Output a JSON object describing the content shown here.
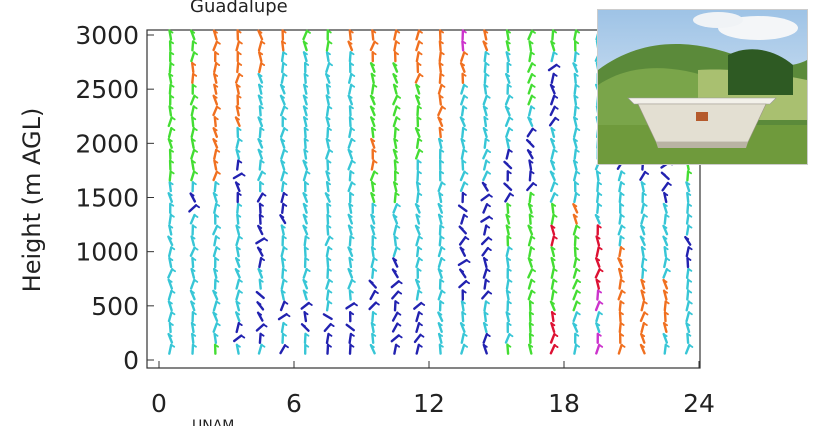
{
  "header_text": "Guadalupe",
  "footer_text": "UNAM",
  "photo": {
    "description": "radar-wind-profiler-photo"
  },
  "chart_data": {
    "type": "wind-barbs",
    "title": "",
    "xlabel": "",
    "ylabel": "Height (m AGL)",
    "xlim": [
      0,
      24
    ],
    "ylim": [
      0,
      3000
    ],
    "x_ticks": [
      0,
      6,
      12,
      18,
      24
    ],
    "y_ticks": [
      0,
      500,
      1000,
      1500,
      2000,
      2500,
      3000
    ],
    "x_tick_labels": [
      "0",
      "6",
      "12",
      "18",
      "24"
    ],
    "y_tick_labels": [
      "0",
      "500",
      "1000",
      "1500",
      "2000",
      "2500",
      "3000"
    ],
    "grid": false,
    "speed_colors": {
      "calm": "#38c6d6",
      "light": "#2222b0",
      "moderate": "#44dd33",
      "strong": "#f07020",
      "very_strong": "#dd1133",
      "extreme": "#cc33cc"
    },
    "profile_hours": [
      0.5,
      1.5,
      2.5,
      3.5,
      4.5,
      5.5,
      6.5,
      7.5,
      8.5,
      9.5,
      10.5,
      11.5,
      12.5,
      13.5,
      14.5,
      15.5,
      16.5,
      17.5,
      18.5,
      19.5,
      20.5,
      21.5,
      22.5,
      23.5
    ],
    "heights_m": [
      100,
      200,
      300,
      400,
      500,
      600,
      700,
      800,
      900,
      1000,
      1100,
      1200,
      1300,
      1400,
      1500,
      1600,
      1700,
      1800,
      1900,
      2000,
      2100,
      2200,
      2300,
      2400,
      2500,
      2600,
      2700,
      2800,
      2900,
      3000
    ],
    "profiles": [
      [
        "calm",
        "calm",
        "calm",
        "calm",
        "calm",
        "calm",
        "calm",
        "calm",
        "calm",
        "calm",
        "calm",
        "calm",
        "calm",
        "calm",
        "calm",
        "calm",
        "moderate",
        "moderate",
        "moderate",
        "moderate",
        "moderate",
        "moderate",
        "moderate",
        "moderate",
        "moderate",
        "moderate",
        "moderate",
        "moderate",
        "moderate",
        "moderate"
      ],
      [
        "calm",
        "calm",
        "calm",
        "calm",
        "calm",
        "calm",
        "calm",
        "calm",
        "calm",
        "calm",
        "calm",
        "calm",
        "calm",
        "light",
        "light",
        "calm",
        "moderate",
        "moderate",
        "moderate",
        "moderate",
        "moderate",
        "moderate",
        "moderate",
        "moderate",
        "moderate",
        "strong",
        "strong",
        "moderate",
        "moderate",
        "moderate"
      ],
      [
        "moderate",
        "calm",
        "calm",
        "calm",
        "calm",
        "calm",
        "calm",
        "calm",
        "calm",
        "calm",
        "calm",
        "calm",
        "calm",
        "calm",
        "calm",
        "calm",
        "strong",
        "strong",
        "strong",
        "strong",
        "strong",
        "strong",
        "strong",
        "strong",
        "strong",
        "strong",
        "strong",
        "strong",
        "strong",
        "strong"
      ],
      [
        "calm",
        "light",
        "light",
        "calm",
        "calm",
        "calm",
        "calm",
        "calm",
        "calm",
        "calm",
        "calm",
        "calm",
        "calm",
        "calm",
        "light",
        "light",
        "light",
        "light",
        "calm",
        "calm",
        "calm",
        "strong",
        "strong",
        "strong",
        "strong",
        "strong",
        "strong",
        "strong",
        "strong",
        "strong"
      ],
      [
        "calm",
        "light",
        "light",
        "light",
        "light",
        "light",
        "calm",
        "calm",
        "light",
        "light",
        "light",
        "light",
        "light",
        "light",
        "light",
        "calm",
        "calm",
        "calm",
        "calm",
        "calm",
        "calm",
        "calm",
        "calm",
        "calm",
        "calm",
        "calm",
        "strong",
        "strong",
        "strong",
        "strong"
      ],
      [
        "light",
        "calm",
        "calm",
        "light",
        "light",
        "calm",
        "calm",
        "calm",
        "calm",
        "calm",
        "calm",
        "calm",
        "light",
        "light",
        "light",
        "calm",
        "calm",
        "calm",
        "calm",
        "calm",
        "calm",
        "calm",
        "calm",
        "calm",
        "calm",
        "calm",
        "calm",
        "calm",
        "strong",
        "strong"
      ],
      [
        "calm",
        "calm",
        "light",
        "light",
        "light",
        "calm",
        "calm",
        "calm",
        "calm",
        "calm",
        "calm",
        "calm",
        "calm",
        "calm",
        "calm",
        "calm",
        "calm",
        "calm",
        "calm",
        "calm",
        "calm",
        "calm",
        "calm",
        "calm",
        "calm",
        "calm",
        "calm",
        "calm",
        "moderate",
        "moderate"
      ],
      [
        "light",
        "light",
        "light",
        "light",
        "calm",
        "calm",
        "calm",
        "calm",
        "calm",
        "calm",
        "calm",
        "calm",
        "calm",
        "calm",
        "calm",
        "calm",
        "calm",
        "calm",
        "calm",
        "calm",
        "calm",
        "calm",
        "calm",
        "calm",
        "calm",
        "calm",
        "calm",
        "calm",
        "moderate",
        "moderate"
      ],
      [
        "light",
        "light",
        "light",
        "light",
        "light",
        "calm",
        "calm",
        "calm",
        "calm",
        "calm",
        "calm",
        "calm",
        "calm",
        "calm",
        "calm",
        "calm",
        "calm",
        "calm",
        "calm",
        "calm",
        "calm",
        "calm",
        "calm",
        "calm",
        "calm",
        "calm",
        "calm",
        "calm",
        "strong",
        "strong"
      ],
      [
        "calm",
        "calm",
        "calm",
        "calm",
        "light",
        "light",
        "light",
        "calm",
        "calm",
        "calm",
        "calm",
        "calm",
        "calm",
        "calm",
        "moderate",
        "moderate",
        "moderate",
        "strong",
        "strong",
        "strong",
        "moderate",
        "moderate",
        "moderate",
        "moderate",
        "moderate",
        "moderate",
        "moderate",
        "strong",
        "strong",
        "strong"
      ],
      [
        "light",
        "light",
        "light",
        "light",
        "light",
        "light",
        "light",
        "light",
        "light",
        "calm",
        "calm",
        "calm",
        "calm",
        "calm",
        "moderate",
        "moderate",
        "moderate",
        "moderate",
        "moderate",
        "moderate",
        "moderate",
        "moderate",
        "moderate",
        "moderate",
        "moderate",
        "moderate",
        "moderate",
        "strong",
        "strong",
        "strong"
      ],
      [
        "light",
        "light",
        "light",
        "light",
        "light",
        "calm",
        "calm",
        "calm",
        "calm",
        "calm",
        "calm",
        "calm",
        "calm",
        "calm",
        "calm",
        "calm",
        "calm",
        "calm",
        "moderate",
        "moderate",
        "moderate",
        "moderate",
        "moderate",
        "moderate",
        "moderate",
        "strong",
        "strong",
        "strong",
        "strong",
        "strong"
      ],
      [
        "calm",
        "calm",
        "calm",
        "calm",
        "calm",
        "calm",
        "calm",
        "calm",
        "calm",
        "calm",
        "calm",
        "calm",
        "calm",
        "calm",
        "calm",
        "calm",
        "calm",
        "calm",
        "calm",
        "calm",
        "strong",
        "strong",
        "strong",
        "strong",
        "strong",
        "strong",
        "strong",
        "strong",
        "strong",
        "strong"
      ],
      [
        "calm",
        "calm",
        "calm",
        "calm",
        "calm",
        "light",
        "light",
        "light",
        "light",
        "light",
        "light",
        "light",
        "light",
        "light",
        "light",
        "calm",
        "calm",
        "calm",
        "calm",
        "calm",
        "calm",
        "calm",
        "calm",
        "calm",
        "calm",
        "strong",
        "strong",
        "strong",
        "extreme",
        "extreme"
      ],
      [
        "light",
        "light",
        "calm",
        "calm",
        "calm",
        "light",
        "light",
        "light",
        "light",
        "light",
        "light",
        "light",
        "light",
        "light",
        "light",
        "light",
        "calm",
        "calm",
        "calm",
        "calm",
        "calm",
        "calm",
        "calm",
        "calm",
        "calm",
        "calm",
        "calm",
        "calm",
        "strong",
        "strong"
      ],
      [
        "moderate",
        "calm",
        "calm",
        "calm",
        "calm",
        "calm",
        "calm",
        "calm",
        "calm",
        "calm",
        "moderate",
        "moderate",
        "moderate",
        "moderate",
        "light",
        "light",
        "light",
        "light",
        "light",
        "calm",
        "calm",
        "calm",
        "calm",
        "calm",
        "calm",
        "calm",
        "calm",
        "calm",
        "moderate",
        "moderate"
      ],
      [
        "moderate",
        "moderate",
        "moderate",
        "moderate",
        "moderate",
        "moderate",
        "moderate",
        "moderate",
        "moderate",
        "moderate",
        "moderate",
        "moderate",
        "moderate",
        "moderate",
        "moderate",
        "light",
        "light",
        "light",
        "light",
        "light",
        "light",
        "calm",
        "calm",
        "moderate",
        "moderate",
        "moderate",
        "moderate",
        "moderate",
        "moderate",
        "moderate"
      ],
      [
        "very_strong",
        "very_strong",
        "very_strong",
        "very_strong",
        "moderate",
        "moderate",
        "moderate",
        "moderate",
        "moderate",
        "moderate",
        "very_strong",
        "very_strong",
        "moderate",
        "moderate",
        "calm",
        "calm",
        "calm",
        "calm",
        "calm",
        "calm",
        "calm",
        "light",
        "light",
        "light",
        "light",
        "light",
        "light",
        "calm",
        "moderate",
        "moderate"
      ],
      [
        "calm",
        "calm",
        "calm",
        "calm",
        "moderate",
        "moderate",
        "moderate",
        "moderate",
        "moderate",
        "moderate",
        "moderate",
        "moderate",
        "strong",
        "strong",
        "calm",
        "calm",
        "calm",
        "calm",
        "calm",
        "calm",
        "calm",
        "calm",
        "calm",
        "calm",
        "calm",
        "calm",
        "calm",
        "calm",
        "moderate",
        "moderate"
      ],
      [
        "extreme",
        "extreme",
        "calm",
        "calm",
        "extreme",
        "extreme",
        "very_strong",
        "very_strong",
        "very_strong",
        "very_strong",
        "very_strong",
        "very_strong",
        "calm",
        "calm",
        "calm",
        "calm",
        "calm",
        "calm",
        "calm",
        "calm",
        "calm",
        "calm",
        "calm",
        "calm",
        "calm",
        "calm",
        "calm",
        "calm",
        "calm",
        "calm"
      ],
      [
        "strong",
        "strong",
        "strong",
        "strong",
        "strong",
        "strong",
        "strong",
        "strong",
        "strong",
        "strong",
        "calm",
        "calm",
        "calm",
        "calm",
        "calm",
        "calm",
        "calm",
        "light",
        "light",
        "calm",
        "calm",
        "calm",
        "calm",
        "calm",
        "calm",
        "calm",
        "calm",
        "calm",
        "calm",
        "calm"
      ],
      [
        "strong",
        "strong",
        "strong",
        "strong",
        "strong",
        "strong",
        "strong",
        "calm",
        "calm",
        "calm",
        "calm",
        "calm",
        "calm",
        "calm",
        "calm",
        "calm",
        "light",
        "light",
        "light",
        "light",
        "calm",
        "calm",
        "calm",
        "calm",
        "calm",
        "calm",
        "calm",
        "calm",
        "calm",
        "calm"
      ],
      [
        "calm",
        "calm",
        "strong",
        "strong",
        "strong",
        "strong",
        "strong",
        "calm",
        "calm",
        "calm",
        "calm",
        "calm",
        "calm",
        "calm",
        "light",
        "light",
        "light",
        "light",
        "calm",
        "calm",
        "calm",
        "calm",
        "calm",
        "calm",
        "calm",
        "calm",
        "calm",
        "calm",
        "calm",
        "calm"
      ],
      [
        "calm",
        "calm",
        "calm",
        "calm",
        "calm",
        "calm",
        "calm",
        "calm",
        "light",
        "light",
        "light",
        "calm",
        "calm",
        "calm",
        "calm",
        "calm",
        "moderate",
        "moderate",
        "moderate",
        "moderate",
        "moderate",
        "moderate",
        "moderate",
        "moderate",
        "moderate",
        "moderate",
        "moderate",
        "moderate",
        "moderate",
        "moderate"
      ]
    ]
  }
}
